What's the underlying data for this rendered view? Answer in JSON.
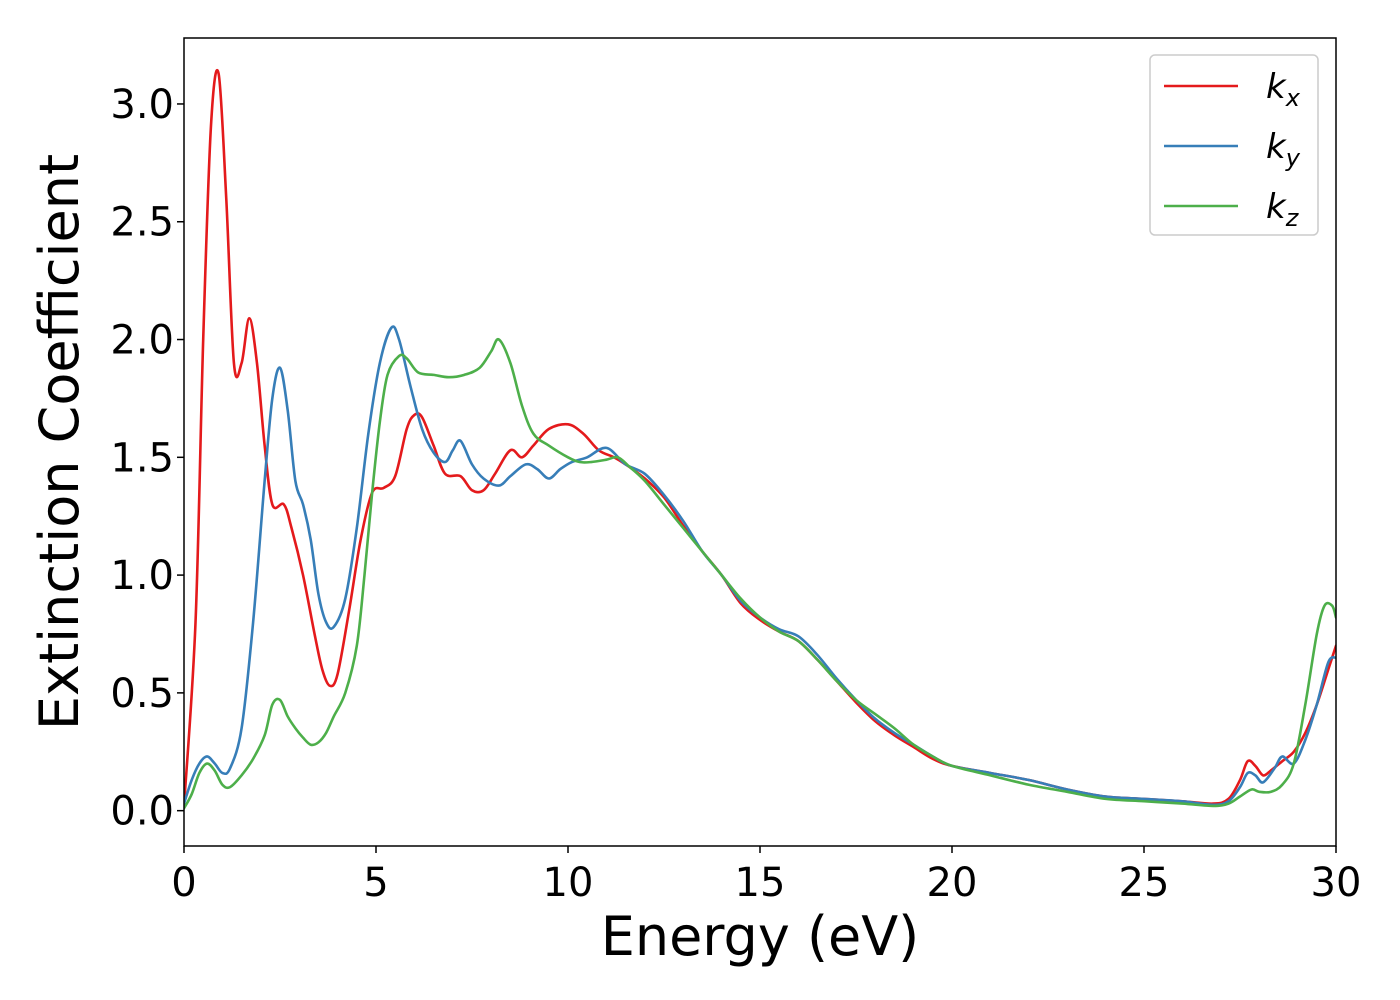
{
  "chart_data": {
    "type": "line",
    "title": "",
    "xlabel": "Energy (eV)",
    "ylabel": "Extinction Coefficient",
    "xlim": [
      0,
      30
    ],
    "ylim": [
      -0.15,
      3.28
    ],
    "xticks": [
      0,
      5,
      10,
      15,
      20,
      25,
      30
    ],
    "xtick_labels": [
      "0",
      "5",
      "10",
      "15",
      "20",
      "25",
      "30"
    ],
    "yticks": [
      0.0,
      0.5,
      1.0,
      1.5,
      2.0,
      2.5,
      3.0
    ],
    "ytick_labels": [
      "0.0",
      "0.5",
      "1.0",
      "1.5",
      "2.0",
      "2.5",
      "3.0"
    ],
    "grid": false,
    "legend_position": "top-right",
    "series": [
      {
        "name": "k",
        "subscript": "x",
        "color": "#e41a1c",
        "points": [
          [
            0,
            0.02
          ],
          [
            0.3,
            0.8
          ],
          [
            0.5,
            2.0
          ],
          [
            0.7,
            2.9
          ],
          [
            0.9,
            3.13
          ],
          [
            1.1,
            2.6
          ],
          [
            1.3,
            1.9
          ],
          [
            1.5,
            1.9
          ],
          [
            1.7,
            2.09
          ],
          [
            1.9,
            1.9
          ],
          [
            2.1,
            1.55
          ],
          [
            2.3,
            1.3
          ],
          [
            2.6,
            1.3
          ],
          [
            2.8,
            1.2
          ],
          [
            3.1,
            1.0
          ],
          [
            3.4,
            0.75
          ],
          [
            3.6,
            0.6
          ],
          [
            3.8,
            0.53
          ],
          [
            4.0,
            0.58
          ],
          [
            4.3,
            0.85
          ],
          [
            4.6,
            1.15
          ],
          [
            4.9,
            1.35
          ],
          [
            5.2,
            1.37
          ],
          [
            5.5,
            1.42
          ],
          [
            5.8,
            1.62
          ],
          [
            6.0,
            1.68
          ],
          [
            6.2,
            1.67
          ],
          [
            6.5,
            1.55
          ],
          [
            6.8,
            1.43
          ],
          [
            7.2,
            1.42
          ],
          [
            7.5,
            1.36
          ],
          [
            7.8,
            1.36
          ],
          [
            8.1,
            1.43
          ],
          [
            8.5,
            1.53
          ],
          [
            8.8,
            1.5
          ],
          [
            9.1,
            1.55
          ],
          [
            9.5,
            1.62
          ],
          [
            10.0,
            1.64
          ],
          [
            10.4,
            1.6
          ],
          [
            10.8,
            1.53
          ],
          [
            11.2,
            1.5
          ],
          [
            11.5,
            1.47
          ],
          [
            12.0,
            1.41
          ],
          [
            12.5,
            1.33
          ],
          [
            13.0,
            1.21
          ],
          [
            13.5,
            1.1
          ],
          [
            14.0,
            1.0
          ],
          [
            14.5,
            0.88
          ],
          [
            15.0,
            0.81
          ],
          [
            15.5,
            0.76
          ],
          [
            16.0,
            0.72
          ],
          [
            16.5,
            0.64
          ],
          [
            17.0,
            0.55
          ],
          [
            17.5,
            0.46
          ],
          [
            18.0,
            0.38
          ],
          [
            18.5,
            0.32
          ],
          [
            19.0,
            0.27
          ],
          [
            19.5,
            0.22
          ],
          [
            20.0,
            0.19
          ],
          [
            21.0,
            0.16
          ],
          [
            22.0,
            0.13
          ],
          [
            23.0,
            0.09
          ],
          [
            24.0,
            0.06
          ],
          [
            25.0,
            0.05
          ],
          [
            26.0,
            0.04
          ],
          [
            26.8,
            0.03
          ],
          [
            27.2,
            0.05
          ],
          [
            27.5,
            0.13
          ],
          [
            27.7,
            0.21
          ],
          [
            27.9,
            0.19
          ],
          [
            28.1,
            0.15
          ],
          [
            28.3,
            0.17
          ],
          [
            28.6,
            0.21
          ],
          [
            28.9,
            0.25
          ],
          [
            29.2,
            0.33
          ],
          [
            29.5,
            0.45
          ],
          [
            29.8,
            0.6
          ],
          [
            30.0,
            0.7
          ]
        ]
      },
      {
        "name": "k",
        "subscript": "y",
        "color": "#377eb8",
        "points": [
          [
            0,
            0.03
          ],
          [
            0.2,
            0.13
          ],
          [
            0.4,
            0.2
          ],
          [
            0.6,
            0.23
          ],
          [
            0.8,
            0.2
          ],
          [
            1.0,
            0.16
          ],
          [
            1.2,
            0.18
          ],
          [
            1.5,
            0.35
          ],
          [
            1.8,
            0.8
          ],
          [
            2.1,
            1.4
          ],
          [
            2.3,
            1.75
          ],
          [
            2.5,
            1.88
          ],
          [
            2.7,
            1.7
          ],
          [
            2.9,
            1.4
          ],
          [
            3.1,
            1.3
          ],
          [
            3.3,
            1.15
          ],
          [
            3.5,
            0.92
          ],
          [
            3.7,
            0.8
          ],
          [
            3.9,
            0.78
          ],
          [
            4.2,
            0.9
          ],
          [
            4.5,
            1.2
          ],
          [
            4.8,
            1.6
          ],
          [
            5.1,
            1.9
          ],
          [
            5.4,
            2.05
          ],
          [
            5.6,
            2.0
          ],
          [
            5.9,
            1.8
          ],
          [
            6.2,
            1.62
          ],
          [
            6.5,
            1.52
          ],
          [
            6.8,
            1.48
          ],
          [
            7.0,
            1.53
          ],
          [
            7.2,
            1.57
          ],
          [
            7.5,
            1.47
          ],
          [
            7.8,
            1.41
          ],
          [
            8.2,
            1.38
          ],
          [
            8.5,
            1.42
          ],
          [
            8.9,
            1.47
          ],
          [
            9.2,
            1.45
          ],
          [
            9.5,
            1.41
          ],
          [
            9.8,
            1.45
          ],
          [
            10.1,
            1.48
          ],
          [
            10.5,
            1.5
          ],
          [
            11.0,
            1.54
          ],
          [
            11.5,
            1.47
          ],
          [
            12.0,
            1.43
          ],
          [
            12.5,
            1.34
          ],
          [
            13.0,
            1.23
          ],
          [
            13.5,
            1.1
          ],
          [
            14.0,
            1.0
          ],
          [
            14.5,
            0.89
          ],
          [
            15.0,
            0.82
          ],
          [
            15.5,
            0.77
          ],
          [
            16.0,
            0.74
          ],
          [
            16.5,
            0.66
          ],
          [
            17.0,
            0.56
          ],
          [
            17.5,
            0.47
          ],
          [
            18.0,
            0.39
          ],
          [
            18.5,
            0.33
          ],
          [
            19.0,
            0.28
          ],
          [
            19.5,
            0.23
          ],
          [
            20.0,
            0.19
          ],
          [
            21.0,
            0.16
          ],
          [
            22.0,
            0.13
          ],
          [
            23.0,
            0.09
          ],
          [
            24.0,
            0.06
          ],
          [
            25.0,
            0.05
          ],
          [
            26.0,
            0.04
          ],
          [
            26.8,
            0.025
          ],
          [
            27.2,
            0.04
          ],
          [
            27.5,
            0.1
          ],
          [
            27.7,
            0.16
          ],
          [
            27.9,
            0.15
          ],
          [
            28.1,
            0.12
          ],
          [
            28.4,
            0.18
          ],
          [
            28.6,
            0.23
          ],
          [
            28.9,
            0.2
          ],
          [
            29.2,
            0.3
          ],
          [
            29.5,
            0.45
          ],
          [
            29.8,
            0.63
          ],
          [
            30.0,
            0.65
          ]
        ]
      },
      {
        "name": "k",
        "subscript": "z",
        "color": "#4daf4a",
        "points": [
          [
            0,
            0.01
          ],
          [
            0.2,
            0.07
          ],
          [
            0.4,
            0.16
          ],
          [
            0.6,
            0.2
          ],
          [
            0.8,
            0.17
          ],
          [
            1.0,
            0.11
          ],
          [
            1.2,
            0.1
          ],
          [
            1.5,
            0.15
          ],
          [
            1.8,
            0.22
          ],
          [
            2.1,
            0.32
          ],
          [
            2.3,
            0.45
          ],
          [
            2.5,
            0.47
          ],
          [
            2.7,
            0.4
          ],
          [
            2.9,
            0.35
          ],
          [
            3.1,
            0.31
          ],
          [
            3.3,
            0.28
          ],
          [
            3.5,
            0.29
          ],
          [
            3.7,
            0.33
          ],
          [
            3.9,
            0.4
          ],
          [
            4.2,
            0.5
          ],
          [
            4.5,
            0.7
          ],
          [
            4.7,
            1.0
          ],
          [
            4.9,
            1.35
          ],
          [
            5.1,
            1.65
          ],
          [
            5.3,
            1.85
          ],
          [
            5.6,
            1.93
          ],
          [
            5.8,
            1.92
          ],
          [
            6.1,
            1.86
          ],
          [
            6.5,
            1.85
          ],
          [
            6.9,
            1.84
          ],
          [
            7.3,
            1.85
          ],
          [
            7.7,
            1.88
          ],
          [
            8.0,
            1.95
          ],
          [
            8.2,
            2.0
          ],
          [
            8.5,
            1.9
          ],
          [
            8.8,
            1.72
          ],
          [
            9.1,
            1.6
          ],
          [
            9.5,
            1.55
          ],
          [
            10.0,
            1.5
          ],
          [
            10.3,
            1.48
          ],
          [
            10.6,
            1.48
          ],
          [
            11.0,
            1.49
          ],
          [
            11.3,
            1.5
          ],
          [
            11.6,
            1.46
          ],
          [
            12.0,
            1.4
          ],
          [
            12.5,
            1.3
          ],
          [
            13.0,
            1.2
          ],
          [
            13.5,
            1.1
          ],
          [
            14.0,
            1.0
          ],
          [
            14.5,
            0.9
          ],
          [
            15.0,
            0.82
          ],
          [
            15.5,
            0.76
          ],
          [
            16.0,
            0.72
          ],
          [
            16.5,
            0.64
          ],
          [
            17.0,
            0.55
          ],
          [
            17.5,
            0.47
          ],
          [
            18.0,
            0.41
          ],
          [
            18.5,
            0.35
          ],
          [
            19.0,
            0.28
          ],
          [
            19.5,
            0.23
          ],
          [
            20.0,
            0.19
          ],
          [
            21.0,
            0.15
          ],
          [
            22.0,
            0.11
          ],
          [
            23.0,
            0.08
          ],
          [
            24.0,
            0.05
          ],
          [
            25.0,
            0.04
          ],
          [
            26.0,
            0.03
          ],
          [
            26.8,
            0.02
          ],
          [
            27.2,
            0.03
          ],
          [
            27.5,
            0.06
          ],
          [
            27.8,
            0.09
          ],
          [
            28.0,
            0.08
          ],
          [
            28.3,
            0.08
          ],
          [
            28.6,
            0.11
          ],
          [
            28.9,
            0.2
          ],
          [
            29.2,
            0.45
          ],
          [
            29.5,
            0.75
          ],
          [
            29.7,
            0.87
          ],
          [
            29.9,
            0.87
          ],
          [
            30.0,
            0.82
          ]
        ]
      }
    ]
  }
}
